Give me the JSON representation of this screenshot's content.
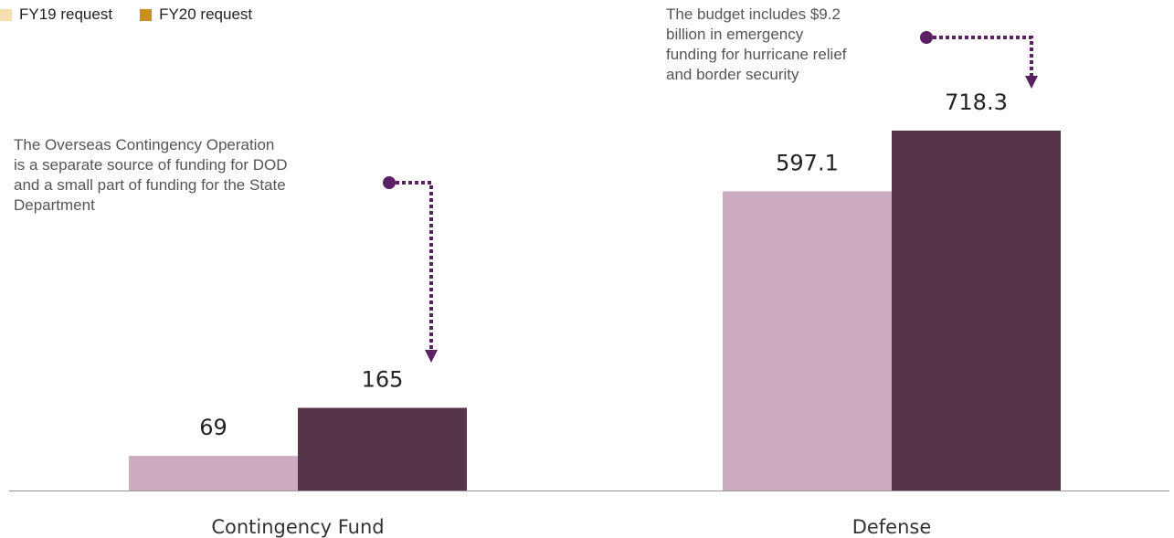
{
  "colors": {
    "legend_fy19": "#f5deb0",
    "legend_fy20": "#c8901c",
    "bar_fy19": "#cdacc2",
    "bar_fy20": "#56344a",
    "annotation_arrow": "#5b1f63",
    "axis": "#999999"
  },
  "chart_data": {
    "type": "bar",
    "categories": [
      "Contingency Fund",
      "Defense"
    ],
    "series": [
      {
        "name": "FY19 request",
        "values": [
          69,
          597.1
        ]
      },
      {
        "name": "FY20 request",
        "values": [
          165,
          718.3
        ]
      }
    ],
    "value_labels": [
      [
        "69",
        "597.1"
      ],
      [
        "165",
        "718.3"
      ]
    ],
    "ylim": [
      0,
      718.3
    ],
    "grid": false,
    "legend": "top-left"
  },
  "annotations": [
    {
      "lines": [
        "The Overseas Contingency Operation",
        "is a separate source of funding for DOD",
        "and a small part of funding for the State",
        "Department"
      ]
    },
    {
      "lines": [
        "The budget includes $9.2",
        "billion in emergency",
        "funding for hurricane relief",
        "and border security"
      ]
    }
  ]
}
